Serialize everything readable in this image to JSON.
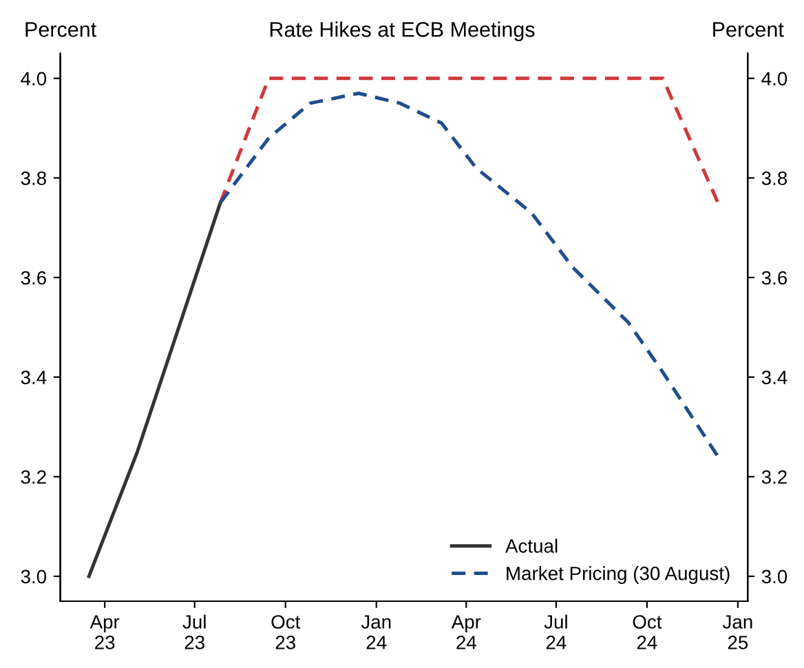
{
  "chart_data": {
    "type": "line",
    "title": "Rate Hikes at ECB Meetings",
    "ylabel": "Percent",
    "y2label": "Percent",
    "series": [
      {
        "name": "Actual",
        "color": "#333333",
        "line_style": "solid",
        "x": [
          "2023-03-16",
          "2023-05-04",
          "2023-06-15",
          "2023-07-27"
        ],
        "values": [
          3.0,
          3.25,
          3.5,
          3.75
        ]
      },
      {
        "color": "#d0393b",
        "line_style": "dashed",
        "x": [
          "2023-07-27",
          "2023-09-14",
          "2024-10-17",
          "2024-12-12"
        ],
        "values": [
          3.75,
          4.0,
          4.0,
          3.75
        ]
      },
      {
        "name": "Market Pricing (30 August)",
        "color": "#1f4e8c",
        "line_style": "dashed",
        "x": [
          "2023-07-27",
          "2023-09-14",
          "2023-10-26",
          "2023-12-14",
          "2024-01-25",
          "2024-03-07",
          "2024-04-11",
          "2024-06-06",
          "2024-07-18",
          "2024-09-12",
          "2024-10-17",
          "2024-12-12"
        ],
        "values": [
          3.75,
          3.88,
          3.95,
          3.97,
          3.95,
          3.91,
          3.82,
          3.73,
          3.62,
          3.51,
          3.41,
          3.24
        ]
      }
    ],
    "xlim": [
      "2023-02-15",
      "2025-01-11"
    ],
    "xticks": [
      {
        "value": "2023-04-01",
        "label": "Apr\n23"
      },
      {
        "value": "2023-07-01",
        "label": "Jul\n23"
      },
      {
        "value": "2023-10-01",
        "label": "Oct\n23"
      },
      {
        "value": "2024-01-01",
        "label": "Jan\n24"
      },
      {
        "value": "2024-04-01",
        "label": "Apr\n24"
      },
      {
        "value": "2024-07-01",
        "label": "Jul\n24"
      },
      {
        "value": "2024-10-01",
        "label": "Oct\n24"
      },
      {
        "value": "2025-01-01",
        "label": "Jan\n25"
      }
    ],
    "ylim": [
      2.95,
      4.05
    ],
    "yticks": [
      {
        "value": 3.0,
        "label": "3.0"
      },
      {
        "value": 3.2,
        "label": "3.2"
      },
      {
        "value": 3.4,
        "label": "3.4"
      },
      {
        "value": 3.6,
        "label": "3.6"
      },
      {
        "value": 3.8,
        "label": "3.8"
      },
      {
        "value": 4.0,
        "label": "4.0"
      }
    ],
    "y2lim": [
      2.95,
      4.05
    ],
    "y2ticks": [
      {
        "value": 3.0,
        "label": "3.0"
      },
      {
        "value": 3.2,
        "label": "3.2"
      },
      {
        "value": 3.4,
        "label": "3.4"
      },
      {
        "value": 3.6,
        "label": "3.6"
      },
      {
        "value": 3.8,
        "label": "3.8"
      },
      {
        "value": 4.0,
        "label": "4.0"
      }
    ],
    "grid": false,
    "legend": "bottom right"
  }
}
